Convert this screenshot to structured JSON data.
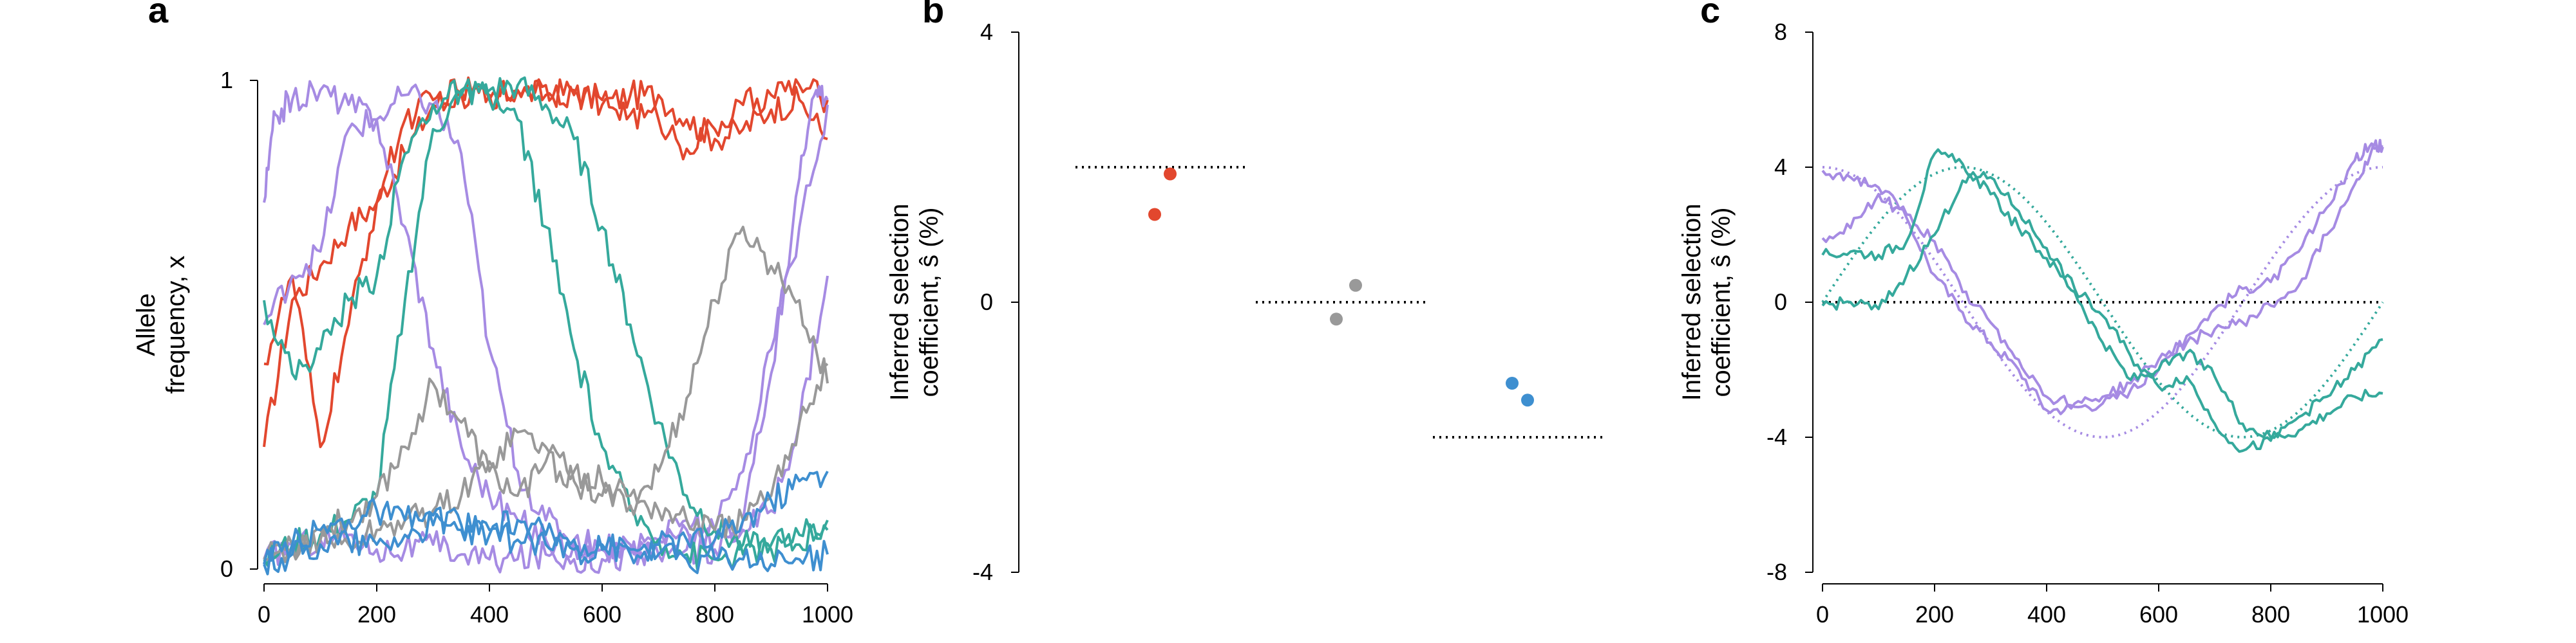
{
  "colors": {
    "red": "#E2472E",
    "purple": "#A68BE3",
    "teal": "#35A99C",
    "gray": "#999999",
    "blue": "#3E8FD0",
    "black": "#000000"
  },
  "chart_data": [
    {
      "panel": "a",
      "type": "line",
      "ylabel": [
        "Allele",
        "frequency, x"
      ],
      "xlim": [
        0,
        1000
      ],
      "ylim": [
        0,
        1
      ],
      "xticks": [
        "0",
        "200",
        "400",
        "600",
        "800",
        "1000"
      ],
      "yticks": [
        "0",
        "1"
      ],
      "series": [
        {
          "color": "red",
          "x": [
            0,
            50,
            100,
            150,
            200,
            250,
            300,
            350,
            400,
            450,
            500,
            550,
            600,
            650,
            700,
            750,
            800,
            850,
            900,
            950,
            1000
          ],
          "y": [
            0.25,
            0.55,
            0.62,
            0.7,
            0.75,
            0.85,
            0.95,
            0.97,
            0.96,
            0.98,
            0.97,
            0.98,
            0.95,
            0.97,
            0.97,
            0.92,
            0.88,
            0.9,
            0.94,
            0.96,
            0.88
          ]
        },
        {
          "color": "red",
          "x": [
            0,
            50,
            100,
            150,
            200,
            250,
            300,
            350,
            400,
            450,
            500,
            550,
            600,
            650,
            700,
            750,
            800,
            850,
            900,
            950,
            1000
          ],
          "y": [
            0.42,
            0.6,
            0.25,
            0.5,
            0.75,
            0.92,
            0.96,
            0.98,
            0.97,
            0.98,
            0.99,
            0.97,
            0.96,
            0.93,
            0.92,
            0.86,
            0.9,
            0.95,
            0.97,
            0.99,
            0.96
          ]
        },
        {
          "color": "purple",
          "x": [
            0,
            20,
            50,
            100,
            150,
            200,
            250,
            300,
            350,
            400,
            450,
            500,
            550,
            600,
            650,
            700,
            750,
            800,
            850,
            900,
            950,
            980,
            1000
          ],
          "y": [
            0.75,
            0.93,
            0.96,
            0.98,
            0.95,
            0.92,
            0.7,
            0.45,
            0.25,
            0.15,
            0.1,
            0.06,
            0.05,
            0.04,
            0.03,
            0.03,
            0.04,
            0.04,
            0.1,
            0.4,
            0.8,
            0.98,
            0.96
          ]
        },
        {
          "color": "purple",
          "x": [
            0,
            50,
            100,
            150,
            200,
            250,
            300,
            350,
            400,
            450,
            500,
            550,
            600,
            650,
            700,
            750,
            800,
            850,
            900,
            950,
            1000
          ],
          "y": [
            0.5,
            0.6,
            0.65,
            0.9,
            0.92,
            0.97,
            0.95,
            0.85,
            0.45,
            0.2,
            0.1,
            0.06,
            0.05,
            0.05,
            0.06,
            0.08,
            0.06,
            0.08,
            0.12,
            0.3,
            0.6
          ]
        },
        {
          "color": "purple",
          "x": [
            0,
            50,
            100,
            150,
            200,
            250,
            300,
            350,
            400,
            450,
            500,
            550,
            600,
            650,
            700,
            750,
            800,
            850,
            900,
            950,
            1000
          ],
          "y": [
            0.02,
            0.05,
            0.06,
            0.07,
            0.04,
            0.04,
            0.05,
            0.03,
            0.02,
            0.02,
            0.03,
            0.02,
            0.02,
            0.03,
            0.06,
            0.1,
            0.08,
            0.2,
            0.45,
            0.7,
            0.95
          ]
        },
        {
          "color": "teal",
          "x": [
            0,
            50,
            100,
            150,
            200,
            250,
            300,
            350,
            400,
            450,
            500,
            550,
            600,
            650,
            700,
            750,
            800,
            850,
            900,
            950,
            1000
          ],
          "y": [
            0.55,
            0.4,
            0.45,
            0.55,
            0.6,
            0.85,
            0.95,
            0.98,
            0.96,
            0.92,
            0.7,
            0.45,
            0.25,
            0.12,
            0.06,
            0.03,
            0.02,
            0.03,
            0.05,
            0.07,
            0.08
          ]
        },
        {
          "color": "teal",
          "x": [
            0,
            50,
            100,
            150,
            200,
            250,
            300,
            350,
            400,
            450,
            500,
            550,
            600,
            650,
            700,
            750,
            800,
            850,
            900,
            950,
            1000
          ],
          "y": [
            0.02,
            0.05,
            0.07,
            0.1,
            0.15,
            0.55,
            0.9,
            0.97,
            0.98,
            0.99,
            0.95,
            0.88,
            0.7,
            0.5,
            0.3,
            0.15,
            0.08,
            0.05,
            0.04,
            0.05,
            0.1
          ]
        },
        {
          "color": "gray",
          "x": [
            0,
            50,
            100,
            150,
            200,
            250,
            300,
            350,
            400,
            450,
            500,
            550,
            600,
            650,
            700,
            750,
            800,
            850,
            900,
            950,
            1000
          ],
          "y": [
            0.02,
            0.04,
            0.08,
            0.1,
            0.15,
            0.25,
            0.38,
            0.3,
            0.2,
            0.15,
            0.22,
            0.18,
            0.15,
            0.13,
            0.2,
            0.35,
            0.55,
            0.7,
            0.62,
            0.55,
            0.38
          ]
        },
        {
          "color": "gray",
          "x": [
            0,
            50,
            100,
            150,
            200,
            250,
            300,
            350,
            400,
            450,
            500,
            550,
            600,
            650,
            700,
            750,
            800,
            850,
            900,
            950,
            1000
          ],
          "y": [
            0.02,
            0.05,
            0.06,
            0.05,
            0.08,
            0.1,
            0.12,
            0.15,
            0.22,
            0.28,
            0.25,
            0.2,
            0.18,
            0.15,
            0.12,
            0.1,
            0.08,
            0.1,
            0.15,
            0.3,
            0.42
          ]
        },
        {
          "color": "blue",
          "x": [
            0,
            50,
            100,
            150,
            200,
            250,
            300,
            350,
            400,
            450,
            500,
            550,
            600,
            650,
            700,
            750,
            800,
            850,
            900,
            950,
            1000
          ],
          "y": [
            0.01,
            0.05,
            0.08,
            0.1,
            0.12,
            0.1,
            0.11,
            0.09,
            0.08,
            0.1,
            0.07,
            0.06,
            0.05,
            0.04,
            0.05,
            0.06,
            0.06,
            0.1,
            0.14,
            0.18,
            0.2
          ]
        },
        {
          "color": "blue",
          "x": [
            0,
            50,
            100,
            150,
            200,
            250,
            300,
            350,
            400,
            450,
            500,
            550,
            600,
            650,
            700,
            750,
            800,
            850,
            900,
            950,
            1000
          ],
          "y": [
            0.01,
            0.03,
            0.05,
            0.06,
            0.05,
            0.07,
            0.09,
            0.08,
            0.07,
            0.06,
            0.05,
            0.04,
            0.04,
            0.03,
            0.03,
            0.02,
            0.02,
            0.02,
            0.01,
            0.02,
            0.03
          ]
        }
      ]
    },
    {
      "panel": "b",
      "type": "scatter",
      "ylabel": [
        "Inferred selection",
        "coefficient, ŝ (%)"
      ],
      "ylim": [
        -4,
        4
      ],
      "yticks": [
        "-4",
        "0",
        "4"
      ],
      "groups": [
        {
          "color": "red",
          "true_value": 2.0,
          "points": [
            1.3,
            1.9
          ]
        },
        {
          "color": "gray",
          "true_value": 0.0,
          "points": [
            -0.25,
            0.25
          ]
        },
        {
          "color": "blue",
          "true_value": -2.0,
          "points": [
            -1.2,
            -1.45
          ]
        }
      ]
    },
    {
      "panel": "c",
      "type": "line",
      "ylabel": [
        "Inferred selection",
        "coefficient, ŝ (%)"
      ],
      "xlim": [
        0,
        1000
      ],
      "ylim": [
        -8,
        8
      ],
      "xticks": [
        "0",
        "200",
        "400",
        "600",
        "800",
        "1000"
      ],
      "yticks": [
        "-8",
        "-4",
        "0",
        "4",
        "8"
      ],
      "zero_line": 0,
      "true_curves": [
        {
          "color": "purple",
          "function": "4*cos(2*pi*t/1000)"
        },
        {
          "color": "teal",
          "function": "4*sin(2*pi*t/1000)"
        }
      ],
      "series": [
        {
          "color": "purple",
          "x": [
            0,
            50,
            100,
            150,
            200,
            250,
            300,
            350,
            400,
            450,
            500,
            550,
            600,
            650,
            700,
            750,
            800,
            850,
            900,
            950,
            980,
            1000
          ],
          "y": [
            3.9,
            3.7,
            3.4,
            2.6,
            1.8,
            0.3,
            -0.6,
            -1.7,
            -2.8,
            -3.0,
            -2.8,
            -2.4,
            -1.7,
            -1.2,
            -0.8,
            -0.6,
            -0.1,
            0.5,
            2.0,
            3.5,
            4.5,
            4.6
          ]
        },
        {
          "color": "purple",
          "x": [
            0,
            50,
            100,
            150,
            200,
            250,
            300,
            350,
            400,
            450,
            500,
            550,
            600,
            650,
            700,
            750,
            800,
            850,
            900,
            950,
            980,
            1000
          ],
          "y": [
            1.9,
            2.2,
            3.2,
            2.5,
            0.8,
            -0.3,
            -1.2,
            -2.0,
            -3.2,
            -3.1,
            -3.0,
            -2.6,
            -2.0,
            -1.0,
            -0.2,
            0.4,
            0.6,
            1.5,
            2.8,
            4.2,
            4.7,
            4.6
          ]
        },
        {
          "color": "teal",
          "x": [
            0,
            50,
            100,
            150,
            200,
            250,
            300,
            350,
            400,
            450,
            500,
            550,
            600,
            650,
            700,
            750,
            800,
            850,
            900,
            950,
            1000
          ],
          "y": [
            1.4,
            1.5,
            1.4,
            1.8,
            4.4,
            4.1,
            3.2,
            2.2,
            1.3,
            0.3,
            -1.2,
            -2.3,
            -2.0,
            -1.5,
            -2.2,
            -3.6,
            -4.0,
            -3.8,
            -3.3,
            -2.8,
            -2.7
          ]
        },
        {
          "color": "teal",
          "x": [
            0,
            50,
            100,
            150,
            200,
            250,
            300,
            350,
            400,
            450,
            500,
            550,
            600,
            650,
            700,
            750,
            800,
            850,
            900,
            950,
            1000
          ],
          "y": [
            -0.1,
            0.0,
            -0.2,
            0.8,
            2.0,
            3.6,
            3.7,
            2.7,
            1.6,
            0.4,
            -0.4,
            -1.6,
            -2.5,
            -2.2,
            -3.6,
            -4.4,
            -4.1,
            -3.4,
            -2.8,
            -2.0,
            -1.1
          ]
        }
      ]
    }
  ]
}
